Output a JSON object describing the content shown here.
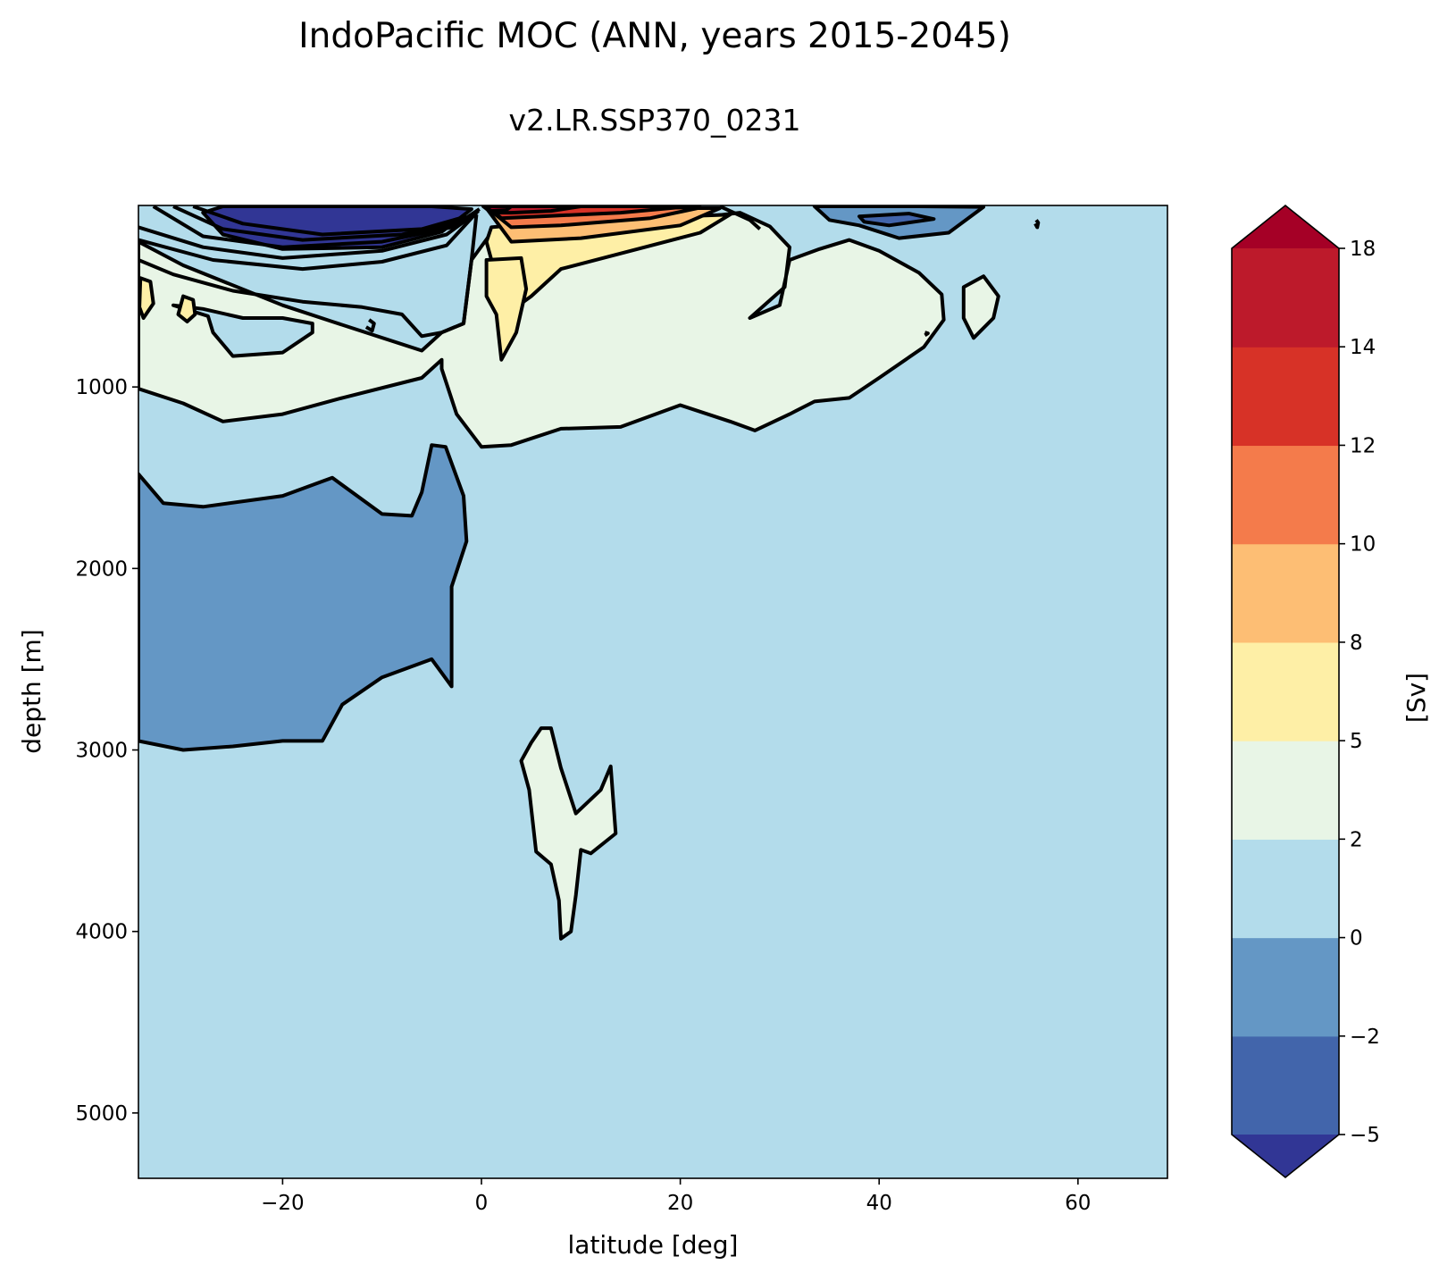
{
  "chart_data": {
    "type": "heatmap",
    "subtype": "filled-contour",
    "title": "IndoPacific MOC (ANN, years 2015-2045)",
    "subtitle": "v2.LR.SSP370_0231",
    "xlabel": "latitude [deg]",
    "ylabel": "depth [m]",
    "xlim": [
      -34.5,
      69
    ],
    "ylim": [
      5360,
      0
    ],
    "y_inverted": true,
    "x_ticks": [
      -20,
      0,
      20,
      40,
      60
    ],
    "x_tick_labels": [
      "−20",
      "0",
      "20",
      "40",
      "60"
    ],
    "y_ticks": [
      1000,
      2000,
      3000,
      4000,
      5000
    ],
    "y_tick_labels": [
      "1000",
      "2000",
      "3000",
      "4000",
      "5000"
    ],
    "grid": false,
    "background_value_range": [
      0,
      2
    ],
    "colorbar": {
      "label": "[Sv]",
      "extend": "both",
      "levels": [
        -5,
        -2,
        0,
        2,
        5,
        8,
        10,
        12,
        14,
        18
      ],
      "level_labels": [
        "−5",
        "−2",
        "0",
        "2",
        "5",
        "8",
        "10",
        "12",
        "14",
        "18"
      ],
      "colors": [
        "#4265ab",
        "#6497c5",
        "#b3dceb",
        "#e8f5e6",
        "#feefa6",
        "#fdbe74",
        "#f47b4b",
        "#d73227",
        "#bd1a2b"
      ],
      "under_color": "#313695",
      "over_color": "#a50026"
    },
    "regions": [
      {
        "value_range": [
          -5,
          -2
        ],
        "fill": "#313695",
        "points": [
          [
            -28,
            40
          ],
          [
            -26,
            5
          ],
          [
            -5,
            5
          ],
          [
            -1,
            20
          ],
          [
            -4,
            145
          ],
          [
            -10,
            230
          ],
          [
            -20,
            240
          ],
          [
            -26,
            160
          ]
        ]
      },
      {
        "value_range": [
          -2,
          0
        ],
        "fill": "#6497c5",
        "points": [
          [
            -34.5,
            1480
          ],
          [
            -32,
            1640
          ],
          [
            -28,
            1660
          ],
          [
            -20,
            1600
          ],
          [
            -15,
            1500
          ],
          [
            -10,
            1700
          ],
          [
            -7,
            1710
          ],
          [
            -6,
            1580
          ],
          [
            -5,
            1320
          ],
          [
            -3.6,
            1330
          ],
          [
            -1.8,
            1600
          ],
          [
            -1.5,
            1850
          ],
          [
            -3,
            2100
          ],
          [
            -3,
            2650
          ],
          [
            -5,
            2500
          ],
          [
            -10,
            2600
          ],
          [
            -14,
            2750
          ],
          [
            -16,
            2950
          ],
          [
            -20,
            2950
          ],
          [
            -25,
            2980
          ],
          [
            -30,
            3000
          ],
          [
            -34.5,
            2950
          ]
        ]
      },
      {
        "value_range": [
          -2,
          0
        ],
        "fill": "#6497c5",
        "points": [
          [
            33.5,
            5
          ],
          [
            44,
            5
          ],
          [
            50.5,
            8
          ],
          [
            47,
            150
          ],
          [
            42,
            180
          ],
          [
            38,
            110
          ],
          [
            35,
            80
          ]
        ]
      },
      {
        "value_range": [
          -5,
          -2
        ],
        "fill": "#4265ab",
        "points": [
          [
            38,
            60
          ],
          [
            43,
            45
          ],
          [
            45.5,
            75
          ],
          [
            41,
            110
          ],
          [
            38.5,
            90
          ]
        ]
      },
      {
        "value_range": [
          2,
          5
        ],
        "fill": "#e8f5e6",
        "points": [
          [
            -34.5,
            200
          ],
          [
            -30,
            330
          ],
          [
            -20,
            550
          ],
          [
            -15,
            640
          ],
          [
            -6,
            800
          ],
          [
            -4,
            700
          ],
          [
            -1.8,
            650
          ],
          [
            -1,
            300
          ],
          [
            1,
            150
          ],
          [
            6,
            160
          ],
          [
            15,
            110
          ],
          [
            26,
            40
          ],
          [
            29,
            115
          ],
          [
            31,
            230
          ],
          [
            30.5,
            450
          ],
          [
            27,
            620
          ],
          [
            30,
            550
          ],
          [
            31,
            300
          ],
          [
            34,
            240
          ],
          [
            37,
            190
          ],
          [
            40,
            250
          ],
          [
            44,
            370
          ],
          [
            46.3,
            490
          ],
          [
            46.5,
            630
          ],
          [
            44.5,
            780
          ],
          [
            40,
            950
          ],
          [
            37,
            1060
          ],
          [
            33.5,
            1080
          ],
          [
            31,
            1150
          ],
          [
            27.5,
            1240
          ],
          [
            25,
            1190
          ],
          [
            20,
            1100
          ],
          [
            14,
            1220
          ],
          [
            8,
            1230
          ],
          [
            3,
            1320
          ],
          [
            0,
            1330
          ],
          [
            -2.5,
            1150
          ],
          [
            -4,
            900
          ],
          [
            -4,
            850
          ],
          [
            -6,
            950
          ],
          [
            -14,
            1060
          ],
          [
            -20,
            1150
          ],
          [
            -26,
            1190
          ],
          [
            -30,
            1090
          ],
          [
            -34.5,
            1010
          ]
        ]
      },
      {
        "value_range": [
          2,
          5
        ],
        "fill": "#e8f5e6",
        "points": [
          [
            50.5,
            390
          ],
          [
            52,
            500
          ],
          [
            51.5,
            620
          ],
          [
            49.5,
            730
          ],
          [
            48.5,
            620
          ],
          [
            48.5,
            450
          ]
        ]
      },
      {
        "value_range": [
          2,
          5
        ],
        "fill": "#e8f5e6",
        "points": [
          [
            6,
            2880
          ],
          [
            7,
            2880
          ],
          [
            8,
            3100
          ],
          [
            9.5,
            3350
          ],
          [
            12,
            3220
          ],
          [
            13,
            3090
          ],
          [
            13.5,
            3460
          ],
          [
            11,
            3570
          ],
          [
            10,
            3550
          ],
          [
            9.5,
            3800
          ],
          [
            9,
            4000
          ],
          [
            8,
            4040
          ],
          [
            7.8,
            3830
          ],
          [
            7,
            3630
          ],
          [
            5.5,
            3560
          ],
          [
            4.8,
            3220
          ],
          [
            4,
            3060
          ],
          [
            5,
            2960
          ]
        ]
      },
      {
        "value_range": [
          2,
          5
        ],
        "fill": "#b3dceb",
        "points": [
          [
            -31,
            550
          ],
          [
            -27.5,
            610
          ],
          [
            -27,
            700
          ],
          [
            -25,
            830
          ],
          [
            -20,
            810
          ],
          [
            -17,
            700
          ],
          [
            -17,
            650
          ],
          [
            -20,
            620
          ],
          [
            -24,
            620
          ],
          [
            -28,
            570
          ]
        ]
      },
      {
        "value_range": [
          5,
          8
        ],
        "fill": "#feefa6",
        "points": [
          [
            0.5,
            200
          ],
          [
            2,
            500
          ],
          [
            3,
            580
          ],
          [
            5,
            500
          ],
          [
            8,
            350
          ],
          [
            15,
            250
          ],
          [
            22,
            150
          ],
          [
            25,
            50
          ],
          [
            15,
            70
          ],
          [
            5,
            100
          ],
          [
            1,
            120
          ]
        ]
      },
      {
        "value_range": [
          5,
          8
        ],
        "fill": "#feefa6",
        "points": [
          [
            0.5,
            300
          ],
          [
            4,
            290
          ],
          [
            4.5,
            460
          ],
          [
            3.5,
            700
          ],
          [
            2,
            850
          ],
          [
            1.5,
            600
          ],
          [
            0.5,
            500
          ]
        ]
      },
      {
        "value_range": [
          5,
          8
        ],
        "fill": "#feefa6",
        "points": [
          [
            -34.3,
            400
          ],
          [
            -33.3,
            420
          ],
          [
            -33,
            540
          ],
          [
            -34,
            620
          ],
          [
            -34.4,
            560
          ]
        ]
      },
      {
        "value_range": [
          5,
          8
        ],
        "fill": "#feefa6",
        "points": [
          [
            -30,
            500
          ],
          [
            -29,
            520
          ],
          [
            -28.8,
            600
          ],
          [
            -29.6,
            640
          ],
          [
            -30.5,
            600
          ]
        ]
      },
      {
        "value_range": [
          8,
          10
        ],
        "fill": "#fdbe74",
        "points": [
          [
            0.5,
            15
          ],
          [
            24,
            15
          ],
          [
            20,
            110
          ],
          [
            10,
            180
          ],
          [
            3,
            200
          ]
        ]
      },
      {
        "value_range": [
          10,
          12
        ],
        "fill": "#f47b4b",
        "points": [
          [
            0.5,
            10
          ],
          [
            22,
            12
          ],
          [
            17,
            70
          ],
          [
            8,
            110
          ],
          [
            3,
            120
          ]
        ]
      },
      {
        "value_range": [
          12,
          14
        ],
        "fill": "#d73227",
        "points": [
          [
            0.5,
            5
          ],
          [
            21,
            5
          ],
          [
            14,
            40
          ],
          [
            6,
            60
          ],
          [
            2,
            70
          ]
        ]
      },
      {
        "value_range": [
          14,
          18
        ],
        "fill": "#bd1a2b",
        "points": [
          [
            0.2,
            5
          ],
          [
            10,
            5
          ],
          [
            7,
            30
          ],
          [
            3,
            40
          ],
          [
            1,
            40
          ]
        ]
      },
      {
        "value_range": [
          18,
          99
        ],
        "fill": "#a50026",
        "points": [
          [
            0.2,
            5
          ],
          [
            3,
            5
          ],
          [
            2.5,
            25
          ],
          [
            1,
            30
          ]
        ]
      }
    ],
    "contour_lines": [
      [
        [
          -34.5,
          120
        ],
        [
          -28,
          230
        ],
        [
          -20,
          290
        ],
        [
          -10,
          250
        ],
        [
          -3.5,
          160
        ],
        [
          -0.3,
          30
        ]
      ],
      [
        [
          -34.5,
          190
        ],
        [
          -27,
          300
        ],
        [
          -18,
          350
        ],
        [
          -10,
          310
        ],
        [
          -3.5,
          220
        ],
        [
          -0.5,
          40
        ]
      ],
      [
        [
          -33,
          5
        ],
        [
          -28,
          170
        ],
        [
          -20,
          230
        ],
        [
          -10,
          200
        ],
        [
          -3,
          120
        ],
        [
          -0.2,
          20
        ]
      ],
      [
        [
          -31,
          5
        ],
        [
          -26,
          130
        ],
        [
          -18,
          190
        ],
        [
          -8,
          160
        ],
        [
          -2,
          90
        ]
      ],
      [
        [
          -29,
          5
        ],
        [
          -24,
          100
        ],
        [
          -16,
          160
        ],
        [
          -6,
          130
        ],
        [
          -1.5,
          60
        ]
      ],
      [
        [
          -34.5,
          300
        ],
        [
          -31,
          380
        ],
        [
          -25,
          470
        ],
        [
          -18,
          530
        ],
        [
          -12,
          560
        ],
        [
          -8,
          600
        ],
        [
          -6,
          720
        ],
        [
          -4,
          700
        ],
        [
          -1.8,
          650
        ],
        [
          -1,
          300
        ],
        [
          -0.5,
          50
        ]
      ],
      [
        [
          -11.3,
          630
        ],
        [
          -10.8,
          650
        ],
        [
          -11,
          690
        ],
        [
          -11.6,
          670
        ]
      ],
      [
        [
          55.8,
          80
        ],
        [
          56,
          95
        ],
        [
          55.9,
          120
        ],
        [
          55.7,
          100
        ]
      ],
      [
        [
          44.6,
          700
        ],
        [
          44.9,
          705
        ],
        [
          44.6,
          715
        ]
      ],
      [
        [
          24,
          5
        ],
        [
          27,
          80
        ],
        [
          28,
          130
        ]
      ]
    ]
  }
}
